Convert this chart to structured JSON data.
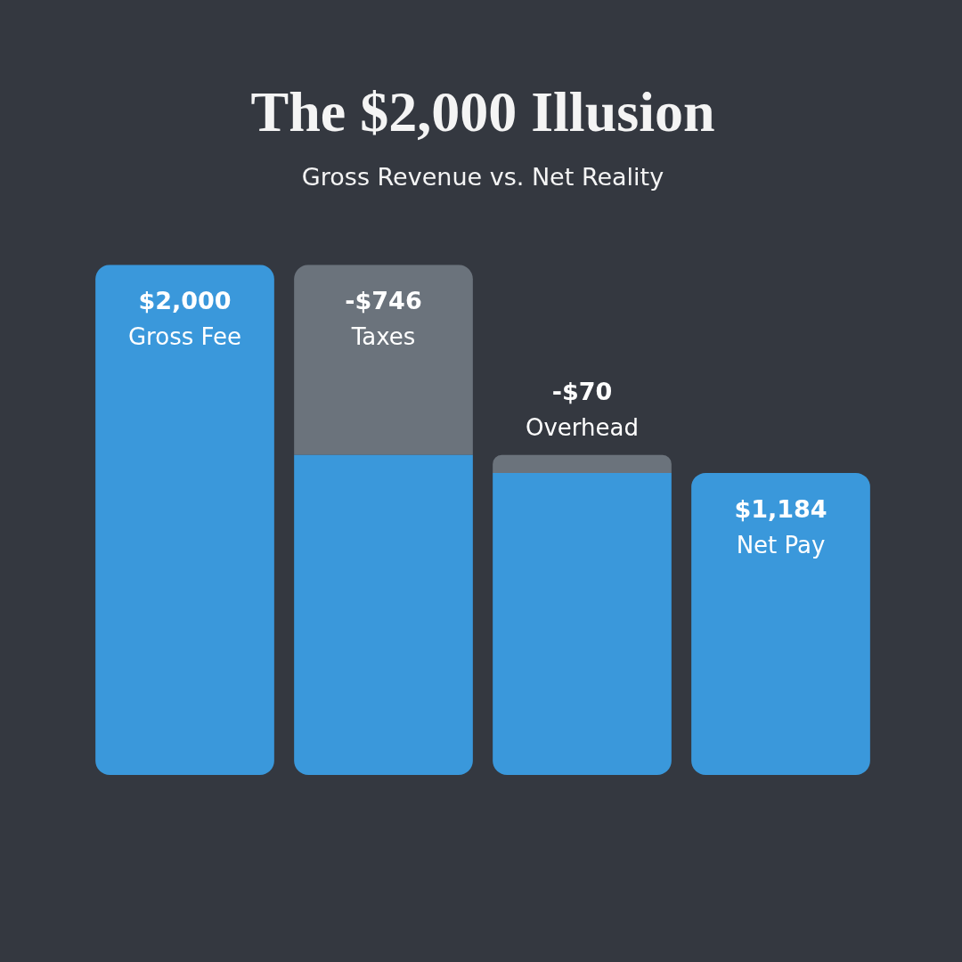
{
  "chart_data": {
    "type": "bar",
    "title": "The $2,000 Illusion",
    "subtitle": "Gross Revenue vs. Net Reality",
    "categories": [
      "Gross Fee",
      "Taxes",
      "Overhead",
      "Net Pay"
    ],
    "stacked": true,
    "legend": false,
    "grid": false,
    "tick_labels": false,
    "ylim": [
      0,
      2000
    ],
    "series": [
      {
        "color": "#3a98db",
        "values": [
          2000,
          1254,
          1184,
          1184
        ],
        "value_labels": [
          "$2,000",
          null,
          null,
          "$1,184"
        ]
      },
      {
        "color": "#6b737c",
        "values": [
          null,
          746,
          70,
          null
        ]
      }
    ],
    "annotations": [
      {
        "text": "-$746",
        "x": "Taxes",
        "y": 2000
      },
      {
        "text": "-$70",
        "x": "Overhead",
        "y": 1254
      }
    ]
  }
}
